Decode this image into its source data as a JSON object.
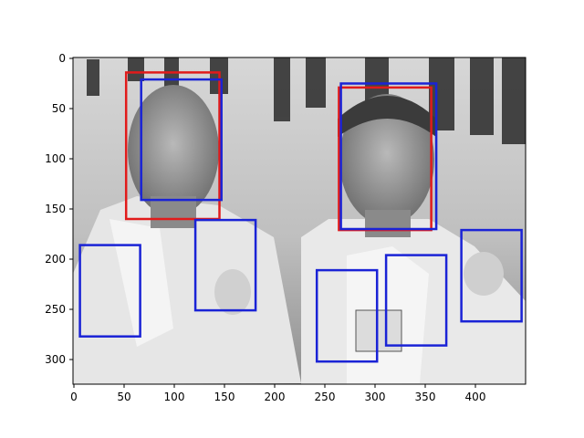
{
  "figure": {
    "x_ticks": [
      "0",
      "50",
      "100",
      "150",
      "200",
      "250",
      "300",
      "350",
      "400"
    ],
    "y_ticks": [
      "0",
      "50",
      "100",
      "150",
      "200",
      "250",
      "300"
    ]
  },
  "image": {
    "description_colors": {
      "photo_gray": "#9a9a9a"
    },
    "axis_extent": {
      "x": [
        0,
        450
      ],
      "y": [
        325,
        0
      ]
    }
  },
  "boxes": {
    "red": {
      "color": "#e11b1b",
      "items": [
        {
          "x1": 52,
          "y1": 14,
          "x2": 145,
          "y2": 160
        },
        {
          "x1": 264,
          "y1": 29,
          "x2": 356,
          "y2": 171
        }
      ]
    },
    "blue": {
      "color": "#1a23d6",
      "items": [
        {
          "x1": 67,
          "y1": 21,
          "x2": 147,
          "y2": 141
        },
        {
          "x1": 266,
          "y1": 25,
          "x2": 361,
          "y2": 170
        },
        {
          "x1": 6,
          "y1": 186,
          "x2": 66,
          "y2": 277
        },
        {
          "x1": 121,
          "y1": 161,
          "x2": 181,
          "y2": 251
        },
        {
          "x1": 242,
          "y1": 211,
          "x2": 302,
          "y2": 302
        },
        {
          "x1": 311,
          "y1": 196,
          "x2": 371,
          "y2": 286
        },
        {
          "x1": 386,
          "y1": 171,
          "x2": 446,
          "y2": 262
        }
      ]
    }
  }
}
